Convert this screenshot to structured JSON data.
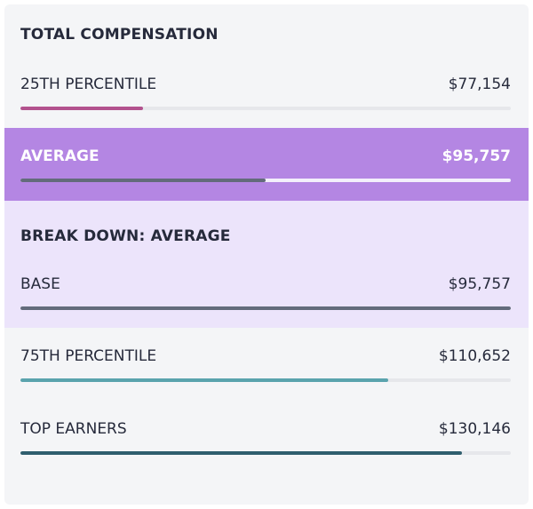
{
  "title": "TOTAL COMPENSATION",
  "colors": {
    "p25_bar": "#b2528e",
    "average_band": "#b486e3",
    "average_bar": "#636b7b",
    "breakdown_bg": "#ece4fb",
    "base_bar": "#636b7b",
    "p75_bar": "#5aa3ad",
    "top_bar": "#2f5e6e"
  },
  "rows": {
    "p25": {
      "label": "25TH PERCENTILE",
      "value": "$77,154",
      "fill_fraction": 0.25
    },
    "average": {
      "label": "AVERAGE",
      "value": "$95,757",
      "fill_fraction": 0.5
    },
    "p75": {
      "label": "75TH PERCENTILE",
      "value": "$110,652",
      "fill_fraction": 0.75
    },
    "top": {
      "label": "TOP EARNERS",
      "value": "$130,146",
      "fill_fraction": 0.9
    }
  },
  "breakdown": {
    "title": "BREAK DOWN: AVERAGE",
    "base": {
      "label": "BASE",
      "value": "$95,757",
      "fill_fraction": 1.0
    }
  }
}
